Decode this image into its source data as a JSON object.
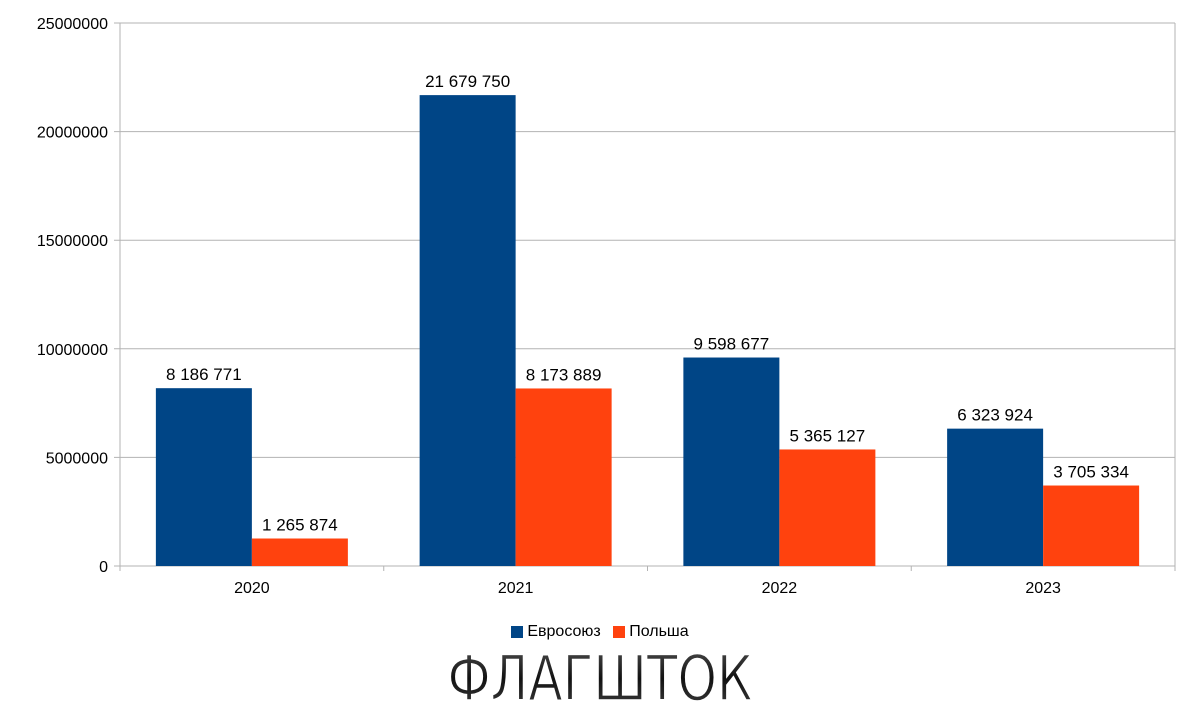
{
  "chart_data": {
    "type": "bar",
    "categories": [
      "2020",
      "2021",
      "2022",
      "2023"
    ],
    "series": [
      {
        "name": "Евросоюз",
        "color": "#004586",
        "values": [
          8186771,
          21679750,
          9598677,
          6323924
        ],
        "labels": [
          "8 186 771",
          "21 679 750",
          "9 598 677",
          "6 323 924"
        ]
      },
      {
        "name": "Польша",
        "color": "#ff420e",
        "values": [
          1265874,
          8173889,
          5365127,
          3705334
        ],
        "labels": [
          "1 265 874",
          "8 173 889",
          "5 365 127",
          "3 705 334"
        ]
      }
    ],
    "ylim": [
      0,
      25000000
    ],
    "yticks": [
      0,
      5000000,
      10000000,
      15000000,
      20000000,
      25000000
    ],
    "ytick_labels": [
      "0",
      "5000000",
      "10000000",
      "15000000",
      "20000000",
      "25000000"
    ],
    "grid": true,
    "legend_position": "bottom-center",
    "title": "",
    "xlabel": "",
    "ylabel": ""
  },
  "watermark": {
    "text": "ФЛАГШТОК",
    "color": "#1a1a1a"
  }
}
